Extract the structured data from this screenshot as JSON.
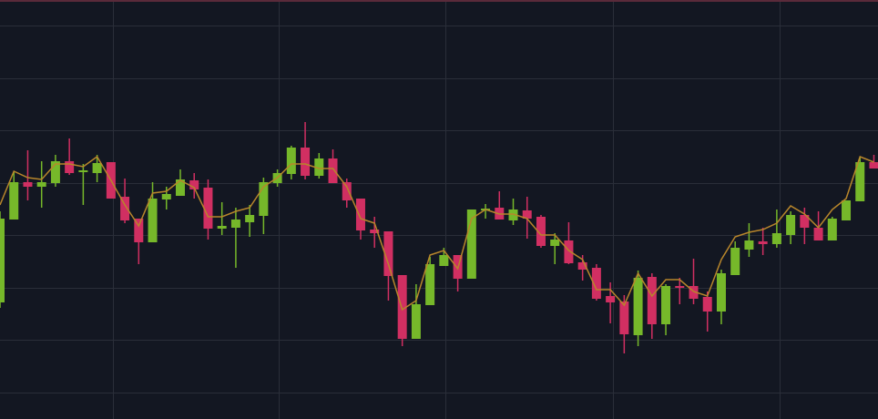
{
  "chart_data": {
    "type": "candlestick",
    "ylim": [
      0,
      460
    ],
    "yticks": [
      29,
      87,
      144,
      202,
      259,
      317,
      374,
      432
    ],
    "grid": true,
    "up_color": "#76b82a",
    "down_color": "#d12f62",
    "open": [
      128,
      219,
      260,
      255,
      259,
      283,
      271,
      270,
      282,
      244,
      220,
      194,
      241,
      245,
      262,
      254,
      209,
      210,
      216,
      223,
      259,
      269,
      298,
      267,
      286,
      260,
      242,
      208,
      206,
      158,
      88,
      125,
      168,
      180,
      154,
      229,
      232,
      218,
      229,
      222,
      190,
      196,
      172,
      166,
      135,
      129,
      92,
      156,
      104,
      146,
      146,
      134,
      118,
      158,
      186,
      195,
      192,
      202,
      224,
      210,
      196,
      218,
      239,
      282
    ],
    "high": [
      228,
      272,
      295,
      283,
      290,
      308,
      280,
      290,
      282,
      264,
      220,
      260,
      255,
      274,
      270,
      263,
      238,
      232,
      235,
      265,
      274,
      300,
      326,
      292,
      296,
      264,
      242,
      222,
      206,
      158,
      148,
      178,
      188,
      180,
      230,
      236,
      250,
      242,
      244,
      224,
      204,
      216,
      180,
      170,
      150,
      136,
      163,
      160,
      148,
      155,
      176,
      140,
      164,
      195,
      215,
      210,
      230,
      228,
      232,
      228,
      222,
      240,
      288,
      290
    ],
    "low": [
      122,
      219,
      240,
      232,
      255,
      268,
      235,
      260,
      242,
      215,
      170,
      194,
      230,
      245,
      242,
      197,
      202,
      166,
      200,
      203,
      255,
      263,
      263,
      264,
      259,
      232,
      197,
      188,
      130,
      80,
      88,
      125,
      168,
      140,
      154,
      220,
      219,
      213,
      198,
      188,
      170,
      170,
      152,
      130,
      105,
      72,
      80,
      88,
      92,
      126,
      126,
      96,
      104,
      158,
      178,
      180,
      188,
      192,
      192,
      196,
      196,
      218,
      239,
      275
    ],
    "close": [
      220,
      260,
      255,
      260,
      283,
      270,
      273,
      281,
      242,
      218,
      194,
      242,
      247,
      263,
      252,
      209,
      212,
      219,
      224,
      260,
      270,
      298,
      267,
      286,
      259,
      240,
      207,
      204,
      157,
      88,
      126,
      170,
      180,
      154,
      230,
      231,
      219,
      230,
      220,
      190,
      197,
      171,
      164,
      132,
      128,
      93,
      155,
      104,
      146,
      144,
      132,
      118,
      160,
      188,
      196,
      192,
      204,
      224,
      210,
      196,
      220,
      240,
      282,
      275
    ],
    "ma": {
      "color": "#b8862b",
      "values": [
        235,
        272,
        265,
        263,
        280,
        280,
        277,
        288,
        262,
        235,
        212,
        248,
        250,
        262,
        254,
        222,
        222,
        228,
        232,
        255,
        265,
        280,
        280,
        275,
        275,
        255,
        220,
        215,
        170,
        120,
        130,
        180,
        185,
        165,
        220,
        230,
        225,
        225,
        220,
        202,
        202,
        185,
        175,
        142,
        142,
        125,
        160,
        135,
        153,
        153,
        140,
        135,
        175,
        200,
        205,
        208,
        215,
        234,
        225,
        210,
        230,
        242,
        288,
        282
      ]
    }
  }
}
